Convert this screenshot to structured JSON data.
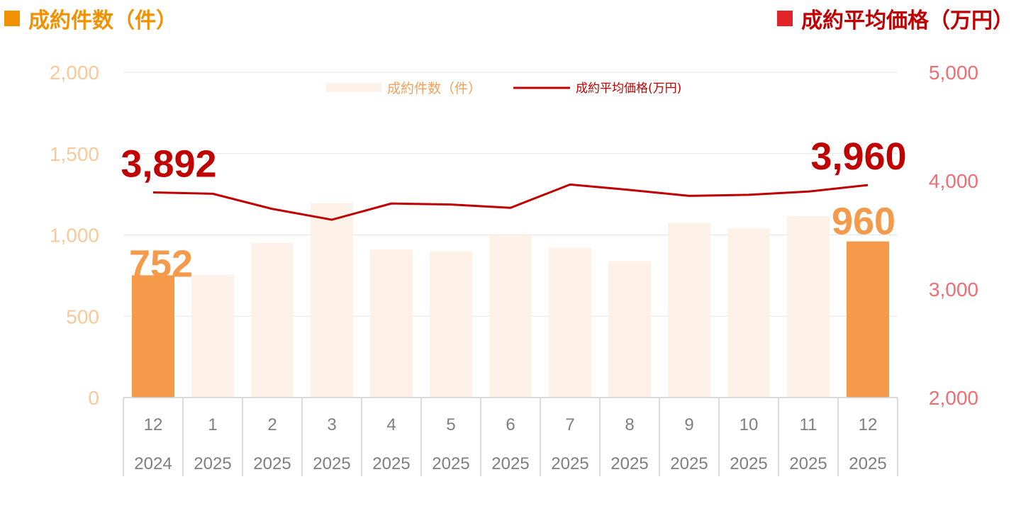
{
  "titles": {
    "left": "成約件数（件）",
    "right": "成約平均価格（万円）"
  },
  "colors": {
    "bar_light": "#FDF1E8",
    "bar_highlight": "#F59A4B",
    "line": "#C00000",
    "left_title": "#F29100",
    "right_title": "#C00000"
  },
  "chart_data": {
    "type": "bar+line",
    "categories": [
      [
        "12",
        "2024"
      ],
      [
        "1",
        "2025"
      ],
      [
        "2",
        "2025"
      ],
      [
        "3",
        "2025"
      ],
      [
        "4",
        "2025"
      ],
      [
        "5",
        "2025"
      ],
      [
        "6",
        "2025"
      ],
      [
        "7",
        "2025"
      ],
      [
        "8",
        "2025"
      ],
      [
        "9",
        "2025"
      ],
      [
        "10",
        "2025"
      ],
      [
        "11",
        "2025"
      ],
      [
        "12",
        "2025"
      ]
    ],
    "series": [
      {
        "name": "成約件数（件）",
        "type": "bar",
        "axis": "left",
        "values": [
          752,
          755,
          950,
          1195,
          910,
          900,
          1000,
          920,
          840,
          1075,
          1040,
          1115,
          960
        ],
        "highlight_indices": [
          0,
          12
        ]
      },
      {
        "name": "成約平均価格(万円)",
        "type": "line",
        "axis": "right",
        "values": [
          3892,
          3880,
          3740,
          3640,
          3790,
          3780,
          3750,
          3965,
          3915,
          3860,
          3870,
          3900,
          3960
        ]
      }
    ],
    "left_axis": {
      "min": 0,
      "max": 2000,
      "ticks": [
        "0",
        "500",
        "1,000",
        "1,500",
        "2,000"
      ]
    },
    "right_axis": {
      "min": 2000,
      "max": 5000,
      "ticks": [
        "2,000",
        "3,000",
        "4,000",
        "5,000"
      ]
    },
    "data_labels": {
      "line_first": "3,892",
      "line_last": "3,960",
      "bar_first": "752",
      "bar_last": "960"
    },
    "legend": {
      "position": "top-center",
      "bar_label": "成約件数（件）",
      "line_label": "成約平均価格(万円)"
    },
    "grid": true
  }
}
